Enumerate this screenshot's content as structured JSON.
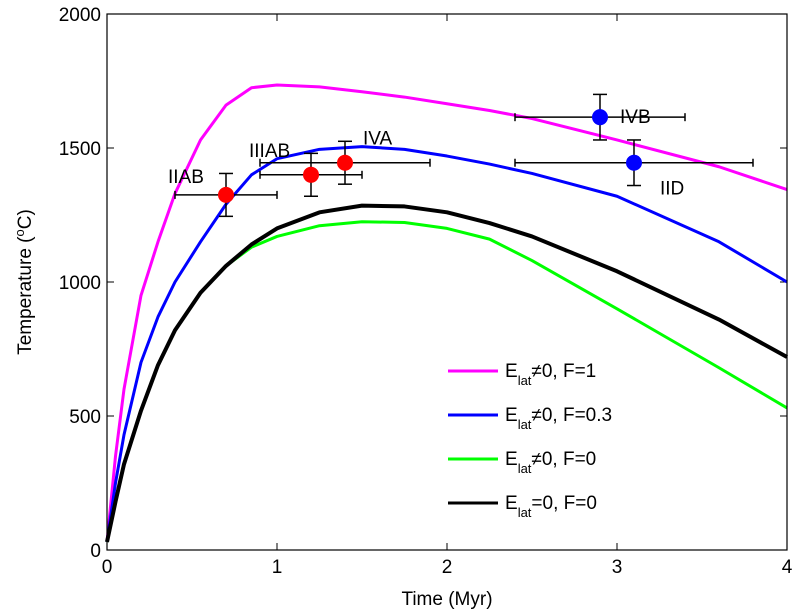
{
  "chart_data": {
    "type": "line",
    "xlabel": "Time (Myr)",
    "ylabel": "Temperature (oC)",
    "xlim": [
      0,
      4
    ],
    "xticks": [
      0,
      1,
      2,
      3,
      4
    ],
    "ylim": [
      0,
      2000
    ],
    "yticks": [
      0,
      500,
      1000,
      1500,
      2000
    ],
    "legend": "lower right",
    "x": [
      0,
      0.05,
      0.1,
      0.2,
      0.3,
      0.4,
      0.55,
      0.7,
      0.85,
      1,
      1.25,
      1.5,
      1.75,
      2,
      2.25,
      2.5,
      3,
      3.6,
      4
    ],
    "series": [
      {
        "name": "Elat≠0, F=1",
        "color": "#ff00ff",
        "values": [
          30,
          350,
          600,
          950,
          1150,
          1330,
          1530,
          1660,
          1725,
          1735,
          1728,
          1710,
          1690,
          1665,
          1640,
          1610,
          1530,
          1430,
          1345
        ]
      },
      {
        "name": "Elat≠0, F=0.3",
        "color": "#0000ff",
        "values": [
          30,
          250,
          430,
          700,
          870,
          1000,
          1150,
          1290,
          1400,
          1460,
          1495,
          1505,
          1495,
          1470,
          1440,
          1405,
          1320,
          1150,
          1000
        ]
      },
      {
        "name": "Elat≠0, F=0",
        "color": "#00ff00",
        "values": [
          30,
          180,
          320,
          520,
          690,
          820,
          960,
          1060,
          1130,
          1170,
          1210,
          1225,
          1222,
          1200,
          1160,
          1080,
          900,
          680,
          530
        ]
      },
      {
        "name": "Elat=0, F=0",
        "color": "#000000",
        "values": [
          30,
          180,
          320,
          520,
          690,
          820,
          960,
          1060,
          1140,
          1200,
          1260,
          1285,
          1282,
          1260,
          1220,
          1170,
          1040,
          860,
          720
        ]
      }
    ],
    "points": [
      {
        "label": "IIAB",
        "x": 0.7,
        "y": 1325,
        "xerr": 0.3,
        "yerr": 80,
        "color": "#ff0000"
      },
      {
        "label": "IIIAB",
        "x": 1.2,
        "y": 1400,
        "xerr": 0.3,
        "yerr": 80,
        "color": "#ff0000"
      },
      {
        "label": "IVA",
        "x": 1.4,
        "y": 1445,
        "xerr": 0.5,
        "yerr": 80,
        "color": "#ff0000"
      },
      {
        "label": "IVB",
        "x": 2.9,
        "y": 1615,
        "xerr": 0.5,
        "yerr": 85,
        "color": "#0000ff"
      },
      {
        "label": "IID",
        "x": 3.1,
        "y": 1445,
        "xerr": 0.7,
        "yerr": 85,
        "color": "#0000ff"
      }
    ]
  }
}
